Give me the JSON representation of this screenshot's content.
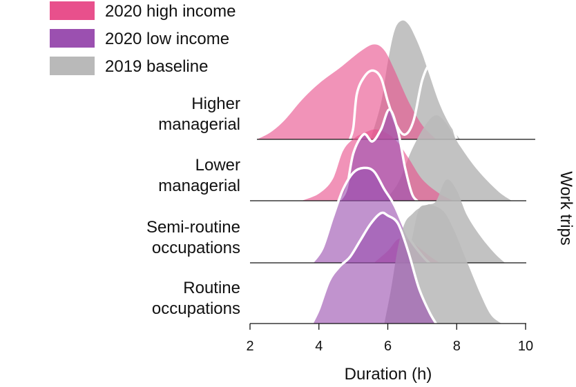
{
  "chart_data": {
    "type": "ridgeline",
    "xlabel": "Duration (h)",
    "side_label": "Work trips",
    "x_ticks": [
      2,
      4,
      6,
      8,
      10
    ],
    "xlim": [
      2,
      10
    ],
    "legend": [
      {
        "key": "high",
        "label": "2020 high income",
        "color": "#e8508c"
      },
      {
        "key": "low",
        "label": "2020 low income",
        "color": "#9b50b0"
      },
      {
        "key": "base",
        "label": "2019 baseline",
        "color": "#b9b9b9"
      }
    ],
    "rows": [
      {
        "label_lines": [
          "Higher",
          "managerial"
        ],
        "base": {
          "type": "fill",
          "color": "#b9b9b9",
          "points": [
            [
              5.5,
              0
            ],
            [
              5.8,
              0.3
            ],
            [
              6.0,
              0.65
            ],
            [
              6.2,
              0.92
            ],
            [
              6.4,
              1.0
            ],
            [
              6.6,
              0.97
            ],
            [
              6.8,
              0.86
            ],
            [
              7.0,
              0.72
            ],
            [
              7.2,
              0.55
            ],
            [
              7.5,
              0.3
            ],
            [
              7.8,
              0.12
            ],
            [
              8.1,
              0.0
            ]
          ]
        },
        "high": {
          "type": "fill",
          "color": "#e8508c",
          "points": [
            [
              2.2,
              0
            ],
            [
              2.6,
              0.06
            ],
            [
              3.0,
              0.16
            ],
            [
              3.5,
              0.33
            ],
            [
              4.0,
              0.47
            ],
            [
              4.6,
              0.6
            ],
            [
              5.2,
              0.74
            ],
            [
              5.6,
              0.8
            ],
            [
              5.9,
              0.75
            ],
            [
              6.2,
              0.58
            ],
            [
              6.6,
              0.32
            ],
            [
              7.0,
              0.12
            ],
            [
              7.4,
              0.0
            ]
          ]
        },
        "low": {
          "type": "outline",
          "color": "#ffffff",
          "points": [
            [
              4.9,
              0
            ],
            [
              5.0,
              0.1
            ],
            [
              5.1,
              0.38
            ],
            [
              5.3,
              0.52
            ],
            [
              5.55,
              0.58
            ],
            [
              5.8,
              0.52
            ],
            [
              6.0,
              0.32
            ],
            [
              6.25,
              0.12
            ],
            [
              6.5,
              0.04
            ],
            [
              6.75,
              0.16
            ],
            [
              7.0,
              0.5
            ],
            [
              7.25,
              0.63
            ],
            [
              7.5,
              0.48
            ],
            [
              7.75,
              0.25
            ],
            [
              8.0,
              0.0
            ]
          ]
        }
      },
      {
        "label_lines": [
          "Lower",
          "managerial"
        ],
        "base": {
          "type": "fill",
          "color": "#b9b9b9",
          "points": [
            [
              5.9,
              0
            ],
            [
              6.3,
              0.15
            ],
            [
              6.7,
              0.43
            ],
            [
              7.1,
              0.64
            ],
            [
              7.4,
              0.72
            ],
            [
              7.7,
              0.65
            ],
            [
              8.1,
              0.46
            ],
            [
              8.6,
              0.26
            ],
            [
              9.2,
              0.08
            ],
            [
              9.6,
              0.0
            ]
          ]
        },
        "high": {
          "type": "fill",
          "color": "#e8508c",
          "points": [
            [
              3.5,
              0
            ],
            [
              4.0,
              0.06
            ],
            [
              4.4,
              0.18
            ],
            [
              4.7,
              0.42
            ],
            [
              5.0,
              0.52
            ],
            [
              5.3,
              0.57
            ],
            [
              5.7,
              0.6
            ],
            [
              6.2,
              0.52
            ],
            [
              6.6,
              0.36
            ],
            [
              7.0,
              0.18
            ],
            [
              7.5,
              0.06
            ],
            [
              7.9,
              0.0
            ]
          ]
        },
        "low": {
          "type": "fill",
          "color": "#9b50b0",
          "points": [
            [
              4.6,
              0
            ],
            [
              4.8,
              0.1
            ],
            [
              5.0,
              0.4
            ],
            [
              5.3,
              0.56
            ],
            [
              5.55,
              0.5
            ],
            [
              5.8,
              0.6
            ],
            [
              6.05,
              0.77
            ],
            [
              6.3,
              0.58
            ],
            [
              6.5,
              0.28
            ],
            [
              6.7,
              0.06
            ],
            [
              6.85,
              0.0
            ]
          ]
        }
      },
      {
        "label_lines": [
          "Semi-routine",
          "occupations"
        ],
        "base": {
          "type": "fill",
          "color": "#b9b9b9",
          "points": [
            [
              6.5,
              0
            ],
            [
              6.7,
              0.2
            ],
            [
              6.9,
              0.45
            ],
            [
              7.15,
              0.49
            ],
            [
              7.4,
              0.52
            ],
            [
              7.7,
              0.7
            ],
            [
              8.0,
              0.61
            ],
            [
              8.3,
              0.4
            ],
            [
              8.7,
              0.22
            ],
            [
              9.1,
              0.08
            ],
            [
              9.4,
              0.0
            ]
          ]
        },
        "high": {
          "type": "fill",
          "color": "#e8508c",
          "points": [
            [
              5.6,
              0
            ],
            [
              6.0,
              0.1
            ],
            [
              6.3,
              0.2
            ],
            [
              6.6,
              0.19
            ],
            [
              6.9,
              0.13
            ],
            [
              7.2,
              0.06
            ],
            [
              7.5,
              0.0
            ]
          ]
        },
        "low": {
          "type": "fill",
          "color": "#9b50b0",
          "points": [
            [
              3.8,
              0
            ],
            [
              4.1,
              0.12
            ],
            [
              4.4,
              0.38
            ],
            [
              4.7,
              0.62
            ],
            [
              5.0,
              0.76
            ],
            [
              5.3,
              0.8
            ],
            [
              5.6,
              0.77
            ],
            [
              5.9,
              0.62
            ],
            [
              6.2,
              0.48
            ],
            [
              6.6,
              0.22
            ],
            [
              7.0,
              0.06
            ],
            [
              7.2,
              0.0
            ]
          ]
        }
      },
      {
        "label_lines": [
          "Routine",
          "occupations"
        ],
        "base": {
          "type": "fill",
          "color": "#b9b9b9",
          "points": [
            [
              5.9,
              0
            ],
            [
              6.1,
              0.3
            ],
            [
              6.3,
              0.65
            ],
            [
              6.5,
              0.85
            ],
            [
              6.7,
              0.92
            ],
            [
              6.9,
              0.97
            ],
            [
              7.2,
              1.0
            ],
            [
              7.6,
              0.95
            ],
            [
              7.9,
              0.8
            ],
            [
              8.3,
              0.52
            ],
            [
              8.7,
              0.24
            ],
            [
              9.0,
              0.07
            ],
            [
              9.3,
              0.0
            ]
          ]
        },
        "high": {
          "type": "none",
          "points": []
        },
        "low": {
          "type": "fill",
          "color": "#9b50b0",
          "points": [
            [
              3.8,
              0
            ],
            [
              4.0,
              0.12
            ],
            [
              4.3,
              0.36
            ],
            [
              4.6,
              0.48
            ],
            [
              4.9,
              0.56
            ],
            [
              5.2,
              0.7
            ],
            [
              5.5,
              0.84
            ],
            [
              5.8,
              0.93
            ],
            [
              6.0,
              0.91
            ],
            [
              6.3,
              0.84
            ],
            [
              6.6,
              0.6
            ],
            [
              6.9,
              0.3
            ],
            [
              7.2,
              0.1
            ],
            [
              7.4,
              0.0
            ]
          ]
        }
      }
    ]
  }
}
